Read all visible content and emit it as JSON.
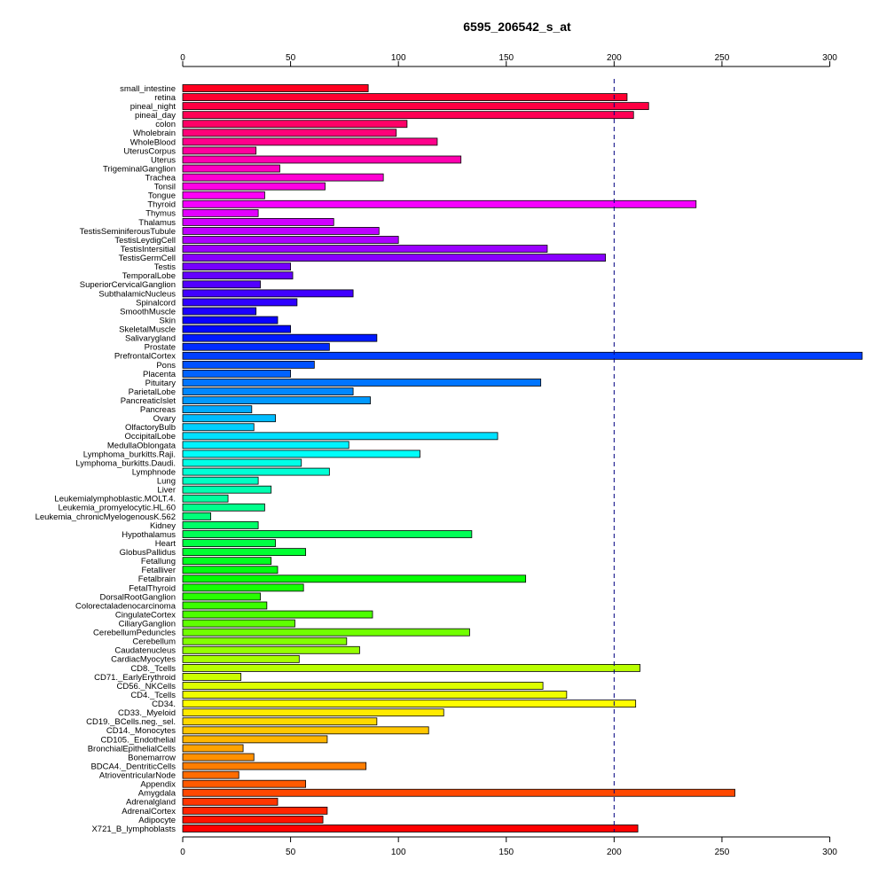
{
  "chart_data": {
    "type": "bar",
    "orientation": "horizontal",
    "title": "6595_206542_s_at",
    "xlim": [
      0,
      315
    ],
    "xticks": [
      0,
      50,
      100,
      150,
      200,
      250,
      300
    ],
    "reference_line": 200,
    "reference_line_color": "#000080",
    "categories": [
      "small_intestine",
      "retina",
      "pineal_night",
      "pineal_day",
      "colon",
      "Wholebrain",
      "WholeBlood",
      "UterusCorpus",
      "Uterus",
      "TrigeminalGanglion",
      "Trachea",
      "Tonsil",
      "Tongue",
      "Thyroid",
      "Thymus",
      "Thalamus",
      "TestisSeminiferousTubule",
      "TestisLeydigCell",
      "TestisIntersitial",
      "TestisGermCell",
      "Testis",
      "TemporalLobe",
      "SuperiorCervicalGanglion",
      "SubthalamicNucleus",
      "Spinalcord",
      "SmoothMuscle",
      "Skin",
      "SkeletalMuscle",
      "Salivarygland",
      "Prostate",
      "PrefrontalCortex",
      "Pons",
      "Placenta",
      "Pituitary",
      "ParietalLobe",
      "PancreaticIslet",
      "Pancreas",
      "Ovary",
      "OlfactoryBulb",
      "OccipitalLobe",
      "MedullaOblongata",
      "Lymphoma_burkitts.Raji.",
      "Lymphoma_burkitts.Daudi.",
      "Lymphnode",
      "Lung",
      "Liver",
      "Leukemialymphoblastic.MOLT.4.",
      "Leukemia_promyelocytic.HL.60",
      "Leukemia_chronicMyelogenousK.562",
      "Kidney",
      "Hypothalamus",
      "Heart",
      "GlobusPallidus",
      "Fetallung",
      "Fetalliver",
      "Fetalbrain",
      "FetalThyroid",
      "DorsalRootGanglion",
      "Colorectaladenocarcinoma",
      "CingulateCortex",
      "CiliaryGanglion",
      "CerebellumPeduncles",
      "Cerebellum",
      "Caudatenucleus",
      "CardiacMyocytes",
      "CD8._Tcells",
      "CD71._EarlyErythroid",
      "CD56._NKCells",
      "CD4._Tcells",
      "CD34.",
      "CD33._Myeloid",
      "CD19._BCells.neg._sel.",
      "CD14._Monocytes",
      "CD105._Endothelial",
      "BronchialEpithelialCells",
      "Bonemarrow",
      "BDCA4._DentriticCells",
      "AtrioventricularNode",
      "Appendix",
      "Amygdala",
      "Adrenalgland",
      "AdrenalCortex",
      "Adipocyte",
      "X721_B_lymphoblasts"
    ],
    "values": [
      86,
      206,
      216,
      209,
      104,
      99,
      118,
      34,
      129,
      45,
      93,
      66,
      38,
      238,
      35,
      70,
      91,
      100,
      169,
      196,
      50,
      51,
      36,
      79,
      53,
      34,
      44,
      50,
      90,
      68,
      315,
      61,
      50,
      166,
      79,
      87,
      32,
      43,
      33,
      146,
      77,
      110,
      55,
      68,
      35,
      41,
      21,
      38,
      13,
      35,
      134,
      43,
      57,
      41,
      44,
      159,
      56,
      36,
      39,
      88,
      52,
      133,
      76,
      82,
      54,
      212,
      27,
      167,
      178,
      210,
      121,
      90,
      114,
      67,
      28,
      33,
      85,
      26,
      57,
      256,
      44,
      67,
      65,
      211
    ]
  }
}
